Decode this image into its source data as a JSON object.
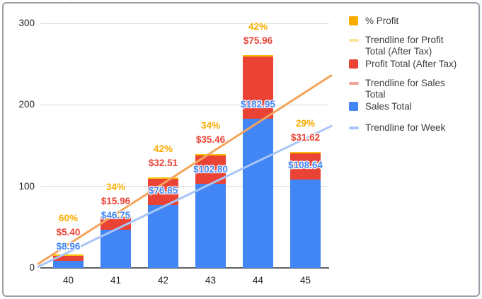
{
  "window": {
    "background": "#ffffff",
    "frame_border_color": "#9aa0a6"
  },
  "chart_data": {
    "type": "bar",
    "stacked": true,
    "categories": [
      "40",
      "41",
      "42",
      "43",
      "44",
      "45"
    ],
    "series": [
      {
        "name": "Sales Total",
        "color": "#4285F4",
        "values": [
          8.96,
          46.75,
          76.85,
          102.8,
          182.95,
          108.64
        ],
        "data_labels": [
          "$8.96",
          "$46.75",
          "$76.85",
          "$102.80",
          "$182.95",
          "$108.64"
        ],
        "label_color": "#4285F4"
      },
      {
        "name": "Profit Total (After Tax)",
        "color": "#EA4335",
        "values": [
          5.4,
          15.96,
          32.51,
          35.46,
          75.96,
          31.62
        ],
        "data_labels": [
          "$5.40",
          "$15.96",
          "$32.51",
          "$35.46",
          "$75.96",
          "$31.62"
        ],
        "label_color": "#EA4335"
      },
      {
        "name": "% Profit",
        "color": "#FBBC04",
        "values": [
          0.6,
          0.34,
          0.42,
          0.34,
          0.42,
          0.29
        ],
        "data_labels": [
          "60%",
          "34%",
          "42%",
          "34%",
          "42%",
          "29%"
        ],
        "label_color": "#F9AB00"
      }
    ],
    "trendlines": [
      {
        "name": "trendline-upper-orange",
        "color": "#F3A45B",
        "start_value": 5,
        "end_value": 236
      },
      {
        "name": "trendline-lower-light-blue",
        "color": "#A7C5F8",
        "start_value": 1.5,
        "end_value": 174
      }
    ],
    "y_axis": {
      "ticks": [
        0,
        100,
        200,
        300
      ],
      "max": 300
    },
    "x_axis": {
      "labels": [
        "40",
        "41",
        "42",
        "43",
        "44",
        "45"
      ]
    },
    "grid": true,
    "legend_position": "right"
  },
  "legend": {
    "items": [
      {
        "label": "% Profit",
        "color": "#F9AB00",
        "swatch": "square"
      },
      {
        "label": "Trendline for Profit\nTotal (After Tax)",
        "color": "#FAE29C",
        "swatch": "line"
      },
      {
        "label": "Profit Total (After Tax)",
        "color": "#EA4335",
        "swatch": "square"
      },
      {
        "label": "Trendline for Sales\nTotal",
        "color": "#F0A49B",
        "swatch": "line"
      },
      {
        "label": "Sales Total",
        "color": "#4285F4",
        "swatch": "square"
      },
      {
        "label": "Trendline for Week",
        "color": "#A7C5F8",
        "swatch": "line"
      }
    ]
  }
}
